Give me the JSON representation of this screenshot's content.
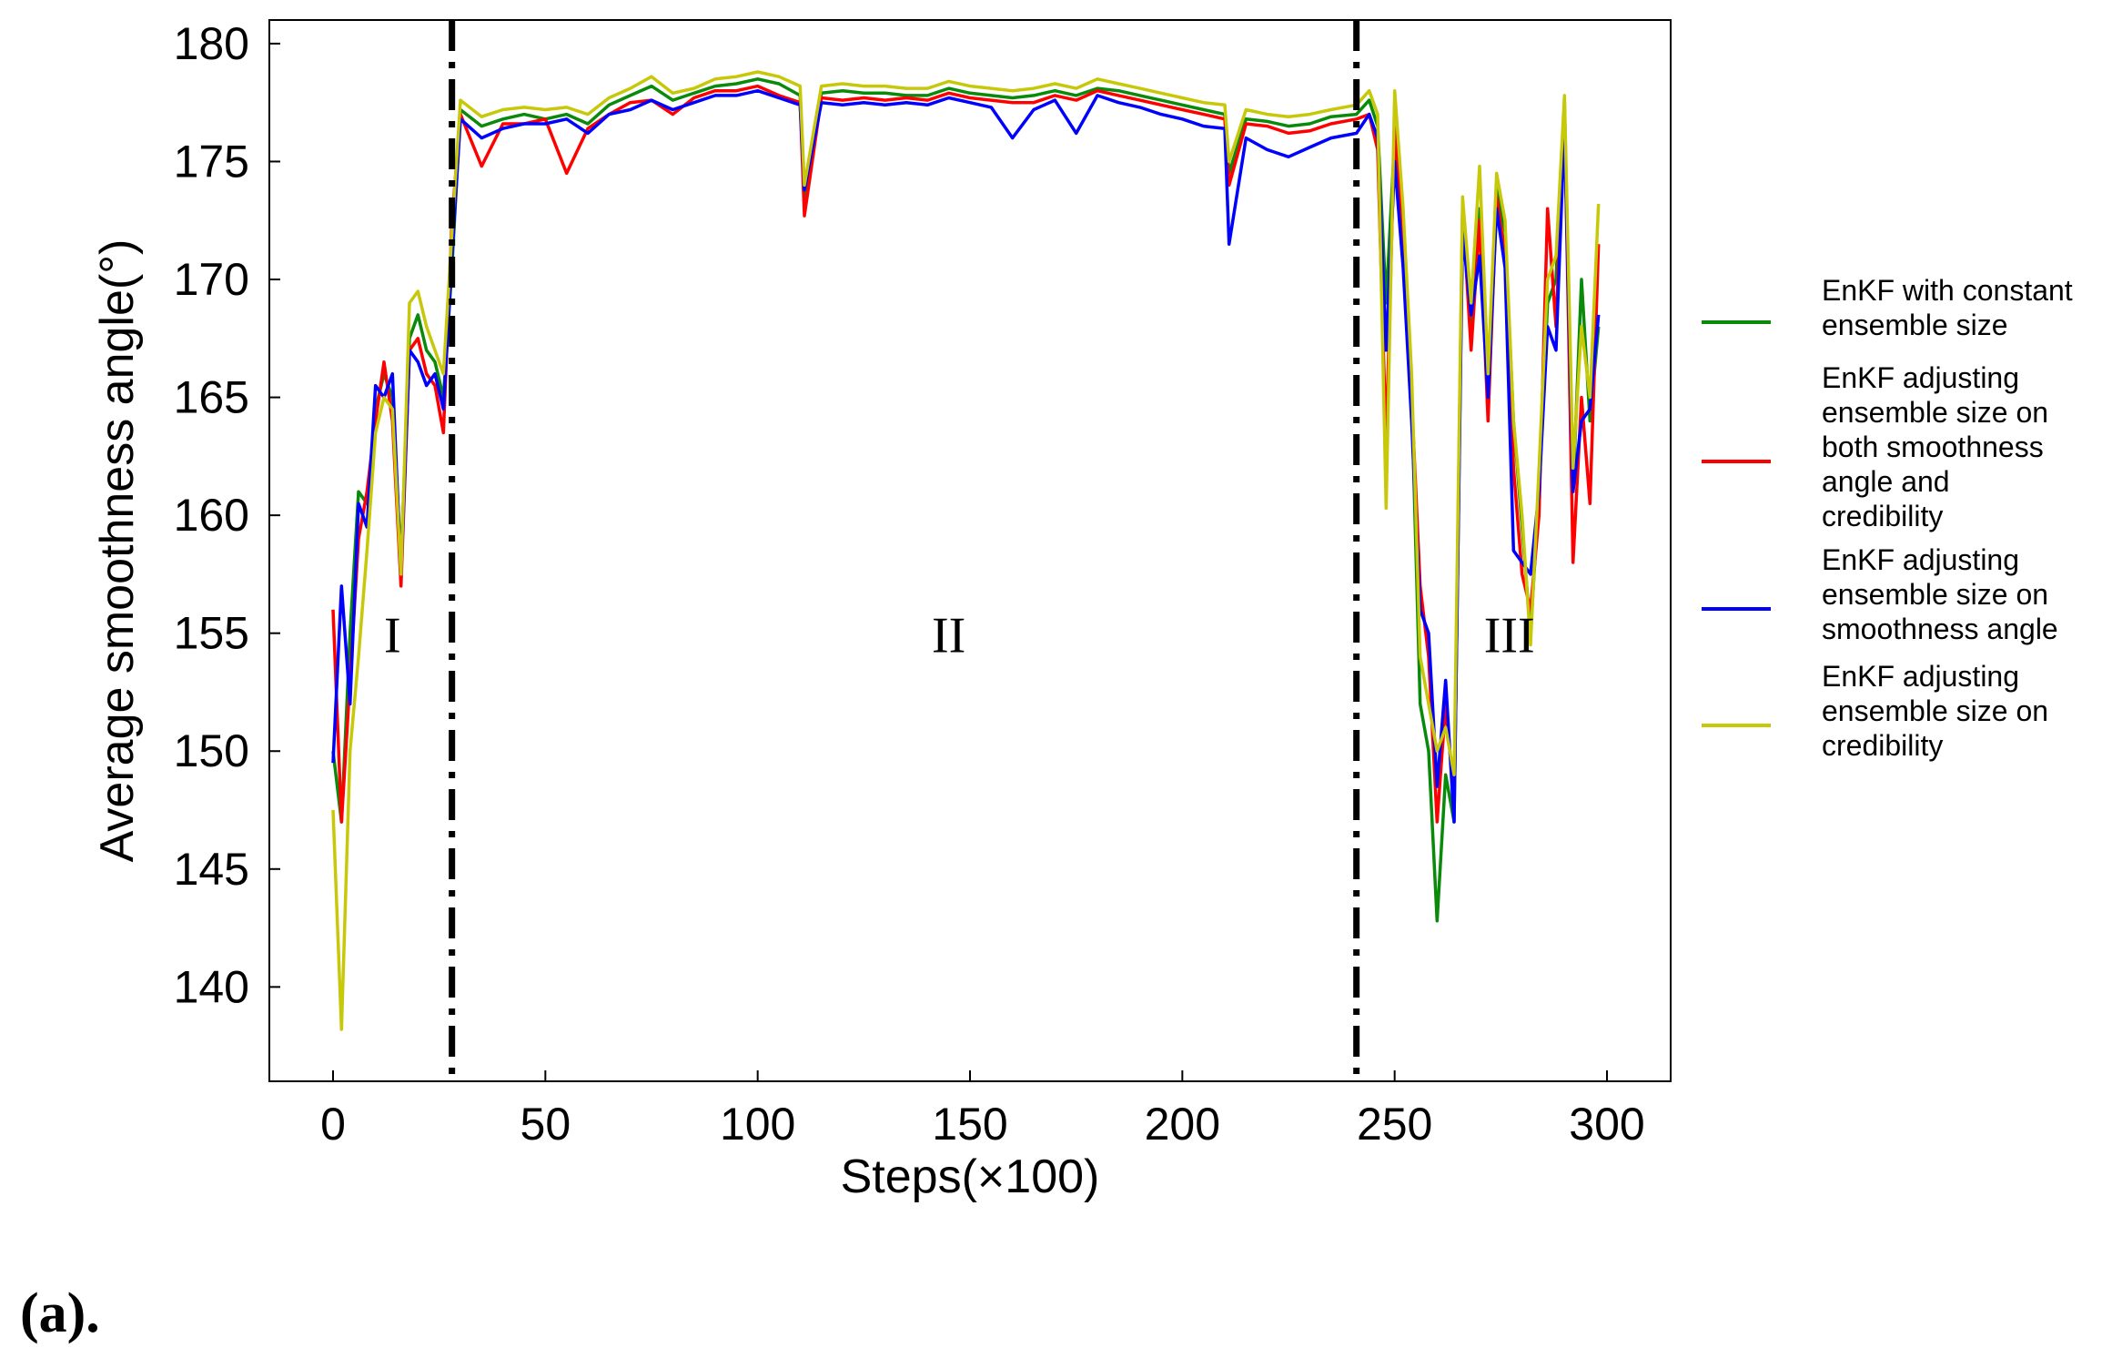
{
  "caption": "(a).",
  "chart_data": {
    "type": "line",
    "title": "",
    "xlabel": "Steps(×100)",
    "ylabel": "Average smoothness angle(°)",
    "xlim": [
      -15,
      315
    ],
    "ylim": [
      136,
      181
    ],
    "xticks": [
      0,
      50,
      100,
      150,
      200,
      250,
      300
    ],
    "yticks": [
      140,
      145,
      150,
      155,
      160,
      165,
      170,
      175,
      180
    ],
    "xtick_labels": [
      "0",
      "50",
      "100",
      "150",
      "200",
      "250",
      "300"
    ],
    "ytick_labels": [
      "140",
      "145",
      "150",
      "155",
      "160",
      "165",
      "170",
      "175",
      "180"
    ],
    "grid": false,
    "legend_position": "right",
    "region_boundaries": [
      28,
      241
    ],
    "regions": [
      {
        "label": "I",
        "x": 14
      },
      {
        "label": "II",
        "x": 145
      },
      {
        "label": "III",
        "x": 277
      }
    ],
    "x": [
      0,
      2,
      4,
      6,
      8,
      10,
      12,
      14,
      16,
      18,
      20,
      22,
      24,
      26,
      28,
      30,
      35,
      40,
      45,
      50,
      55,
      60,
      65,
      70,
      75,
      80,
      85,
      90,
      95,
      100,
      105,
      110,
      111,
      115,
      120,
      125,
      130,
      135,
      140,
      145,
      150,
      155,
      160,
      165,
      170,
      175,
      180,
      185,
      190,
      195,
      200,
      205,
      210,
      211,
      215,
      220,
      225,
      230,
      235,
      241,
      244,
      246,
      248,
      250,
      252,
      254,
      256,
      258,
      260,
      262,
      264,
      266,
      268,
      270,
      272,
      274,
      276,
      278,
      280,
      282,
      284,
      286,
      288,
      290,
      292,
      294,
      296,
      298
    ],
    "series": [
      {
        "name": "EnKF with constant ensemble size",
        "color": "#0a8a0a",
        "values": [
          150.0,
          147.0,
          155.0,
          161.0,
          160.5,
          164.5,
          166.0,
          165.0,
          158.0,
          167.5,
          168.5,
          167.0,
          166.5,
          165.0,
          170.5,
          177.2,
          176.5,
          176.8,
          177.0,
          176.8,
          177.0,
          176.6,
          177.4,
          177.8,
          178.2,
          177.6,
          177.9,
          178.2,
          178.3,
          178.5,
          178.3,
          177.8,
          173.5,
          177.9,
          178.0,
          177.9,
          177.9,
          177.8,
          177.8,
          178.1,
          177.9,
          177.8,
          177.7,
          177.8,
          178.0,
          177.8,
          178.1,
          178.0,
          177.8,
          177.6,
          177.4,
          177.2,
          177.0,
          174.5,
          176.8,
          176.7,
          176.5,
          176.6,
          176.9,
          177.0,
          177.6,
          176.5,
          169.0,
          176.0,
          172.0,
          165.0,
          152.0,
          150.0,
          142.8,
          149.0,
          147.0,
          172.5,
          168.0,
          173.0,
          165.0,
          174.0,
          172.0,
          164.0,
          159.5,
          155.0,
          161.0,
          169.0,
          170.0,
          177.5,
          161.0,
          170.0,
          164.0,
          168.0
        ]
      },
      {
        "name": "EnKF adjusting ensemble size on both smoothness angle and credibility",
        "color": "#ff0000",
        "values": [
          156.0,
          147.0,
          153.0,
          159.0,
          161.0,
          164.0,
          166.5,
          164.0,
          157.0,
          167.0,
          167.5,
          166.0,
          165.5,
          163.5,
          172.5,
          177.0,
          174.8,
          176.6,
          176.6,
          176.8,
          174.5,
          176.4,
          177.0,
          177.5,
          177.6,
          177.0,
          177.7,
          178.0,
          178.0,
          178.2,
          177.8,
          177.5,
          172.7,
          177.7,
          177.6,
          177.7,
          177.6,
          177.7,
          177.6,
          177.9,
          177.7,
          177.6,
          177.5,
          177.5,
          177.8,
          177.6,
          178.0,
          177.8,
          177.6,
          177.4,
          177.2,
          177.0,
          176.8,
          174.0,
          176.6,
          176.5,
          176.2,
          176.3,
          176.6,
          176.8,
          177.0,
          175.5,
          163.0,
          176.5,
          172.0,
          165.0,
          157.0,
          154.0,
          147.0,
          152.0,
          148.0,
          173.0,
          167.0,
          172.5,
          164.0,
          173.5,
          171.0,
          162.0,
          157.5,
          156.0,
          160.0,
          173.0,
          168.0,
          177.0,
          158.0,
          165.0,
          160.5,
          171.5
        ]
      },
      {
        "name": "EnKF adjusting ensemble size on smoothness angle",
        "color": "#0000ff",
        "values": [
          149.5,
          157.0,
          152.0,
          160.5,
          159.5,
          165.5,
          165.0,
          166.0,
          157.5,
          167.0,
          166.5,
          165.5,
          166.0,
          164.5,
          171.0,
          176.8,
          176.0,
          176.4,
          176.6,
          176.6,
          176.8,
          176.2,
          177.0,
          177.2,
          177.6,
          177.2,
          177.5,
          177.8,
          177.8,
          178.0,
          177.7,
          177.4,
          173.8,
          177.5,
          177.4,
          177.5,
          177.4,
          177.5,
          177.4,
          177.7,
          177.5,
          177.3,
          176.0,
          177.2,
          177.6,
          176.2,
          177.8,
          177.5,
          177.3,
          177.0,
          176.8,
          176.5,
          176.4,
          171.5,
          176.0,
          175.5,
          175.2,
          175.6,
          176.0,
          176.2,
          177.0,
          176.0,
          167.0,
          175.0,
          170.5,
          164.0,
          156.0,
          155.0,
          148.5,
          153.0,
          147.0,
          172.0,
          168.5,
          171.0,
          165.0,
          173.0,
          170.5,
          158.5,
          158.0,
          157.5,
          161.0,
          168.0,
          167.0,
          176.5,
          161.0,
          164.0,
          164.5,
          168.5
        ]
      },
      {
        "name": "EnKF adjusting ensemble size on credibility",
        "color": "#c8c80a",
        "values": [
          147.5,
          138.2,
          150.0,
          154.0,
          158.5,
          163.5,
          165.0,
          164.5,
          157.5,
          169.0,
          169.5,
          168.0,
          167.0,
          166.0,
          172.0,
          177.6,
          176.9,
          177.2,
          177.3,
          177.2,
          177.3,
          177.0,
          177.7,
          178.1,
          178.6,
          177.9,
          178.1,
          178.5,
          178.6,
          178.8,
          178.6,
          178.2,
          174.0,
          178.2,
          178.3,
          178.2,
          178.2,
          178.1,
          178.1,
          178.4,
          178.2,
          178.1,
          178.0,
          178.1,
          178.3,
          178.1,
          178.5,
          178.3,
          178.1,
          177.9,
          177.7,
          177.5,
          177.4,
          175.0,
          177.2,
          177.0,
          176.9,
          177.0,
          177.2,
          177.4,
          178.0,
          177.0,
          160.3,
          178.0,
          173.0,
          166.0,
          154.0,
          152.0,
          150.0,
          151.0,
          149.0,
          173.5,
          169.0,
          174.8,
          166.0,
          174.5,
          172.5,
          164.0,
          160.0,
          154.5,
          162.0,
          170.0,
          171.0,
          177.8,
          162.0,
          168.0,
          165.0,
          173.2
        ]
      }
    ]
  },
  "legend": {
    "items": [
      {
        "lines": [
          "EnKF with constant",
          "ensemble size"
        ],
        "color": "#0a8a0a"
      },
      {
        "lines": [
          "EnKF adjusting",
          "ensemble size on",
          "both smoothness",
          "angle and",
          "credibility"
        ],
        "color": "#ff0000"
      },
      {
        "lines": [
          "EnKF adjusting",
          "ensemble size on",
          "smoothness angle"
        ],
        "color": "#0000ff"
      },
      {
        "lines": [
          "EnKF adjusting",
          "ensemble size on",
          "credibility"
        ],
        "color": "#c8c80a"
      }
    ]
  }
}
